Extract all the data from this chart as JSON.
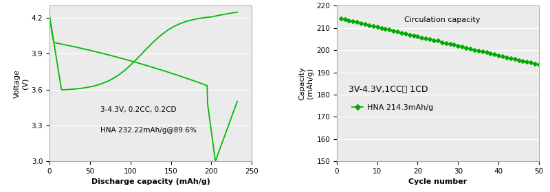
{
  "chart1": {
    "xlabel": "Discharge capacity (mAh/g)",
    "ylabel_top": "Voltage",
    "ylabel_bot": "(V)",
    "xlim": [
      0,
      250
    ],
    "ylim": [
      3.0,
      4.3
    ],
    "yticks": [
      3.0,
      3.3,
      3.6,
      3.9,
      4.2
    ],
    "xticks": [
      0,
      50,
      100,
      150,
      200,
      250
    ],
    "annotation_line1": "3-4.3V, 0.2CC, 0.2CD",
    "annotation_line2": "HNA 232.22mAh/g@89.6%",
    "line_color": "#00bb00",
    "bg_color": "#ebebeb"
  },
  "chart2": {
    "title": "Circulation capacity",
    "xlabel": "Cycle number",
    "ylabel_top": "Capacity",
    "ylabel_bot": "(mAh/g)",
    "xlim": [
      0,
      50
    ],
    "ylim": [
      150,
      220
    ],
    "yticks": [
      150,
      160,
      170,
      180,
      190,
      200,
      210,
      220
    ],
    "xticks": [
      0,
      10,
      20,
      30,
      40,
      50
    ],
    "annotation_line1": "3V-4.3V,1CC， 1CD",
    "legend_label": "HNA 214.3mAh/g",
    "line_color": "#00aa00",
    "marker": "D",
    "marker_size": 3,
    "bg_color": "#ebebeb",
    "start_val": 214.2,
    "end_val": 193.5,
    "n_points": 50
  }
}
